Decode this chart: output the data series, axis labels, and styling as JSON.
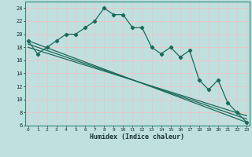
{
  "xlabel": "Humidex (Indice chaleur)",
  "bg_color": "#c0e0e0",
  "grid_color": "#e8c8c8",
  "line_color": "#1a6a5a",
  "ys_main": [
    19,
    17,
    18,
    19,
    20,
    20,
    21,
    22,
    24,
    23,
    23,
    21,
    21,
    18,
    17,
    18,
    16.5,
    17.5,
    13,
    11.5,
    13,
    9.5,
    8,
    6.5
  ],
  "xs_main": [
    0,
    1,
    2,
    3,
    4,
    5,
    6,
    7,
    8,
    9,
    10,
    11,
    12,
    13,
    14,
    15,
    16,
    17,
    18,
    19,
    20,
    21,
    22,
    23
  ],
  "diag_lines": [
    {
      "x": [
        0,
        23
      ],
      "y": [
        19.0,
        6.5
      ]
    },
    {
      "x": [
        0,
        23
      ],
      "y": [
        18.5,
        7.0
      ]
    },
    {
      "x": [
        0,
        23
      ],
      "y": [
        18.0,
        7.5
      ]
    }
  ],
  "ylim": [
    6,
    25
  ],
  "xlim": [
    -0.3,
    23.3
  ],
  "yticks": [
    6,
    8,
    10,
    12,
    14,
    16,
    18,
    20,
    22,
    24
  ],
  "xticks": [
    0,
    1,
    2,
    3,
    4,
    5,
    6,
    7,
    8,
    9,
    10,
    11,
    12,
    13,
    14,
    15,
    16,
    17,
    18,
    19,
    20,
    21,
    22,
    23
  ]
}
